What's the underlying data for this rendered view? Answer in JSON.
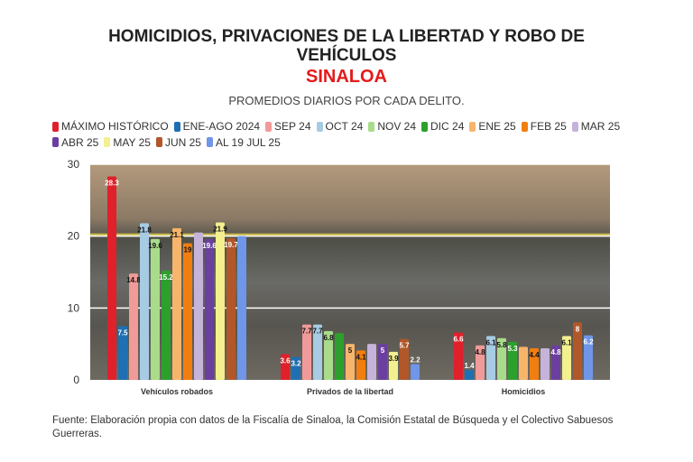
{
  "header": {
    "title_line1": "HOMICIDIOS, PRIVACIONES DE LA LIBERTAD Y ROBO DE",
    "title_line2": "VEHÍCULOS",
    "region": "SINALOA",
    "subtitle": "PROMEDIOS DIARIOS POR CADA DELITO."
  },
  "chart_data": {
    "type": "bar",
    "categories": [
      "Vehículos robados",
      "Privados de la libertad",
      "Homicidios"
    ],
    "ylim": [
      0,
      30
    ],
    "yticks": [
      0,
      10,
      20,
      30
    ],
    "grid": true,
    "legend_position": "top",
    "series": [
      {
        "name": "MÁXIMO HISTÓRICO",
        "color": "#e0202a",
        "values": [
          28.3,
          3.6,
          6.6
        ],
        "labels": [
          "28.3",
          "3.6",
          "6.6"
        ]
      },
      {
        "name": "ENE-AGO 2024",
        "color": "#1f6fb2",
        "values": [
          7.5,
          3.2,
          1.4
        ],
        "labels": [
          "7.5",
          "3.2",
          "1.4"
        ]
      },
      {
        "name": "SEP 24",
        "color": "#f19a9a",
        "values": [
          14.8,
          7.7,
          4.8
        ],
        "labels": [
          "14.8",
          "7.7",
          "4.8"
        ]
      },
      {
        "name": "OCT 24",
        "color": "#a6cbe3",
        "values": [
          21.8,
          7.7,
          6.1
        ],
        "labels": [
          "21.8",
          "7.7",
          "6.1"
        ]
      },
      {
        "name": "NOV 24",
        "color": "#a8dc8a",
        "values": [
          19.6,
          6.8,
          5.8
        ],
        "labels": [
          "19.6",
          "6.8",
          "5.8"
        ]
      },
      {
        "name": "DIC 24",
        "color": "#2ca02c",
        "values": [
          15.2,
          6.5,
          5.3
        ],
        "labels": [
          "15.2",
          null,
          "5.3"
        ]
      },
      {
        "name": "ENE 25",
        "color": "#f7b56b",
        "values": [
          21.1,
          5,
          4.6
        ],
        "labels": [
          "21.1",
          "5",
          null
        ]
      },
      {
        "name": "FEB 25",
        "color": "#f27e0f",
        "values": [
          19,
          4.1,
          4.4
        ],
        "labels": [
          "19",
          "4.1",
          "4.4"
        ]
      },
      {
        "name": "MAR 25",
        "color": "#c6b3d9",
        "values": [
          20.5,
          5,
          4.4
        ],
        "labels": [
          null,
          null,
          null
        ]
      },
      {
        "name": "ABR 25",
        "color": "#6b3fa0",
        "values": [
          19.6,
          5,
          4.8
        ],
        "labels": [
          "19.6",
          "5",
          "4.8"
        ]
      },
      {
        "name": "MAY 25",
        "color": "#f4ef8f",
        "values": [
          21.9,
          3.9,
          6.1
        ],
        "labels": [
          "21.9",
          "3.9",
          "6.1"
        ]
      },
      {
        "name": "JUN 25",
        "color": "#b1572a",
        "values": [
          19.7,
          5.7,
          8
        ],
        "labels": [
          "19.7",
          "5.7",
          "8"
        ]
      },
      {
        "name": "AL 19 JUL 25",
        "color": "#6f96e8",
        "values": [
          20,
          2.2,
          6.2
        ],
        "labels": [
          null,
          "2.2",
          "6.2"
        ]
      }
    ]
  },
  "footer": {
    "source": "Fuente: Elaboración propia con datos de la Fiscalía de Sinaloa, la Comisión Estatal de Búsqueda y el Colectivo Sabuesos Guerreras."
  }
}
